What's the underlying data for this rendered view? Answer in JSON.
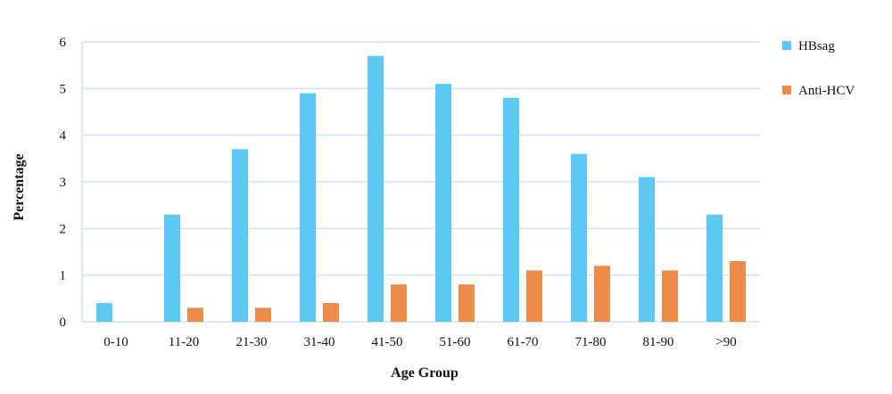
{
  "chart_data": {
    "type": "bar",
    "title": "",
    "xlabel": "Age Group",
    "ylabel": "Percentage",
    "categories": [
      "0-10",
      "11-20",
      "21-30",
      "31-40",
      "41-50",
      "51-60",
      "61-70",
      "71-80",
      "81-90",
      ">90"
    ],
    "series": [
      {
        "name": "HBsag",
        "color": "#5bc8f5",
        "values": [
          0.4,
          2.3,
          3.7,
          4.9,
          5.7,
          5.1,
          4.8,
          3.6,
          3.1,
          2.3
        ]
      },
      {
        "name": "Anti-HCV",
        "color": "#ec8a4a",
        "values": [
          0,
          0.3,
          0.3,
          0.4,
          0.8,
          0.8,
          1.1,
          1.2,
          1.1,
          1.3
        ]
      }
    ],
    "ylim": [
      0,
      6
    ],
    "yticks": [
      "0",
      "1",
      "2",
      "3",
      "4",
      "5",
      "6"
    ],
    "grid": true,
    "legend_position": "right"
  }
}
